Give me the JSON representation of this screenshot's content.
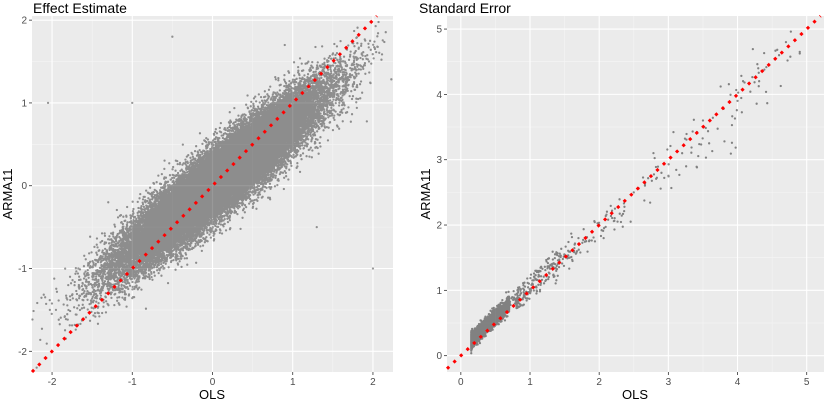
{
  "panels": [
    {
      "title": "Effect Estimate",
      "xlabel": "OLS",
      "ylabel": "ARMA11",
      "xlim": [
        -2.25,
        2.25
      ],
      "ylim": [
        -2.25,
        2.05
      ],
      "xticks": [
        "-2",
        "-1",
        "0",
        "1",
        "2"
      ],
      "yticks": [
        "-2",
        "-1",
        "0",
        "1",
        "2"
      ]
    },
    {
      "title": "Standard Error",
      "xlabel": "OLS",
      "ylabel": "ARMA11",
      "xlim": [
        -0.2,
        5.25
      ],
      "ylim": [
        -0.25,
        5.2
      ],
      "xticks": [
        "0",
        "1",
        "2",
        "3",
        "4",
        "5"
      ],
      "yticks": [
        "0",
        "1",
        "2",
        "3",
        "4",
        "5"
      ]
    }
  ],
  "chart_data": [
    {
      "type": "scatter",
      "title": "Effect Estimate",
      "xlabel": "OLS",
      "ylabel": "ARMA11",
      "xlim": [
        -2.25,
        2.25
      ],
      "ylim": [
        -2.25,
        2.05
      ],
      "grid": true,
      "point_color": "#000000",
      "point_alpha": 0.4,
      "cloud": {
        "n_points": 40000,
        "x_mean": 0.1,
        "x_sd": 0.6,
        "y_slope": 0.78,
        "y_noise_sd": 0.2
      },
      "outliers": [
        [
          -1.0,
          1.0
        ],
        [
          -0.5,
          1.8
        ],
        [
          1.3,
          -0.5
        ],
        [
          2.0,
          -1.0
        ],
        [
          0.9,
          1.7
        ],
        [
          -1.3,
          -0.2
        ],
        [
          -2.05,
          1.0
        ]
      ],
      "reference_line": {
        "type": "identity",
        "color": "#ff0000",
        "dashed": true
      }
    },
    {
      "type": "scatter",
      "title": "Standard Error",
      "xlabel": "OLS",
      "ylabel": "ARMA11",
      "xlim": [
        -0.2,
        5.25
      ],
      "ylim": [
        -0.25,
        5.2
      ],
      "grid": true,
      "point_color": "#000000",
      "point_alpha": 0.45,
      "cloud": {
        "n_points": 4000,
        "x_min": 0.15,
        "x_mode": 0.45,
        "tail": 1.1
      },
      "tail_points": [
        [
          4.6,
          4.6
        ],
        [
          4.3,
          4.4
        ],
        [
          4.0,
          3.9
        ],
        [
          3.5,
          3.6
        ],
        [
          3.2,
          3.1
        ],
        [
          2.9,
          2.8
        ],
        [
          2.5,
          2.5
        ],
        [
          2.0,
          2.0
        ],
        [
          1.7,
          1.8
        ],
        [
          1.4,
          1.4
        ],
        [
          4.7,
          4.8
        ],
        [
          4.9,
          4.65
        ]
      ],
      "reference_line": {
        "type": "identity",
        "color": "#ff0000",
        "dashed": true
      }
    }
  ]
}
